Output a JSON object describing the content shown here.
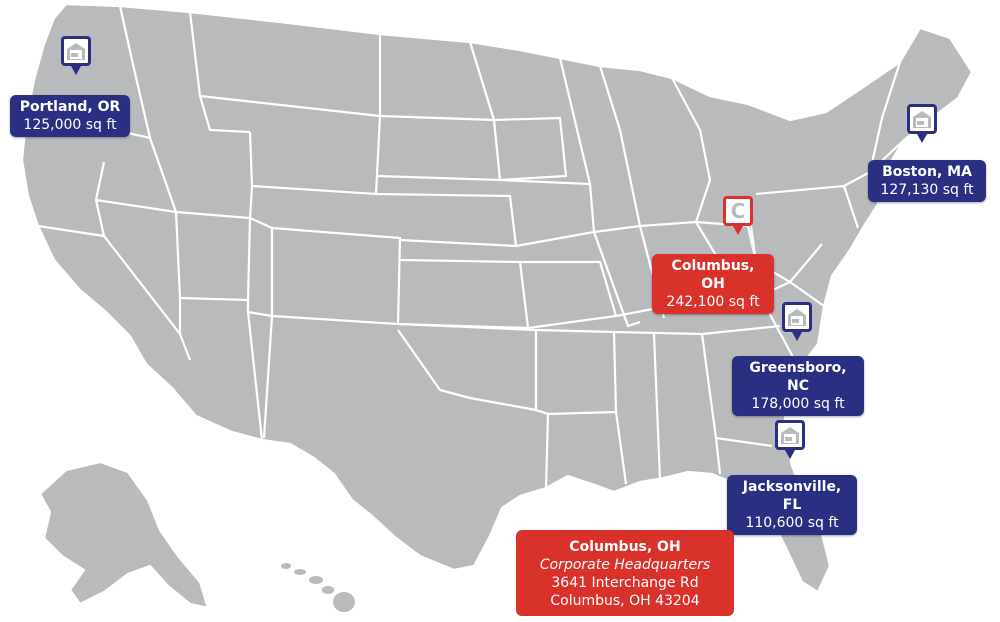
{
  "colors": {
    "land": "#b9babc",
    "border": "#ffffff",
    "warehouse": "#2b2f82",
    "headquarters": "#d9322b"
  },
  "locations": [
    {
      "city": "Portland, OR",
      "size": "125,000 sq ft",
      "icon": "warehouse-icon"
    },
    {
      "city": "Boston, MA",
      "size": "127,130 sq ft",
      "icon": "warehouse-icon"
    },
    {
      "city": "Columbus, OH",
      "size": "242,100 sq ft",
      "icon": "c-letter-icon",
      "pin_letter": "C"
    },
    {
      "city": "Greensboro, NC",
      "size": "178,000 sq ft",
      "icon": "warehouse-icon"
    },
    {
      "city": "Jacksonville, FL",
      "size": "110,600 sq ft",
      "icon": "warehouse-icon"
    }
  ],
  "headquarters": {
    "city": "Columbus, OH",
    "subtitle": "Corporate Headquarters",
    "address_line1": "3641 Interchange Rd",
    "address_line2": "Columbus, OH 43204"
  }
}
